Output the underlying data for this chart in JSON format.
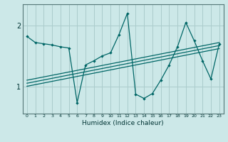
{
  "title": "",
  "xlabel": "Humidex (Indice chaleur)",
  "bg_color": "#cce8e8",
  "line_color": "#006666",
  "grid_color": "#aacccc",
  "xlim": [
    -0.5,
    23.5
  ],
  "ylim": [
    0.55,
    2.35
  ],
  "yticks": [
    1,
    2
  ],
  "series1_x": [
    0,
    1,
    2,
    3,
    4,
    5,
    6,
    7,
    8,
    9,
    10,
    11,
    12,
    13,
    14,
    15,
    16,
    17,
    18,
    19,
    20,
    21,
    22,
    23
  ],
  "series1_y": [
    1.82,
    1.72,
    1.7,
    1.68,
    1.65,
    1.63,
    0.73,
    1.35,
    1.42,
    1.5,
    1.55,
    1.85,
    2.2,
    0.87,
    0.8,
    0.88,
    1.1,
    1.35,
    1.65,
    2.05,
    1.75,
    1.42,
    1.12,
    1.7
  ],
  "trend_lines": [
    {
      "x": [
        0,
        23
      ],
      "y": [
        1.0,
        1.62
      ]
    },
    {
      "x": [
        0,
        23
      ],
      "y": [
        1.05,
        1.67
      ]
    },
    {
      "x": [
        0,
        23
      ],
      "y": [
        1.1,
        1.72
      ]
    }
  ]
}
